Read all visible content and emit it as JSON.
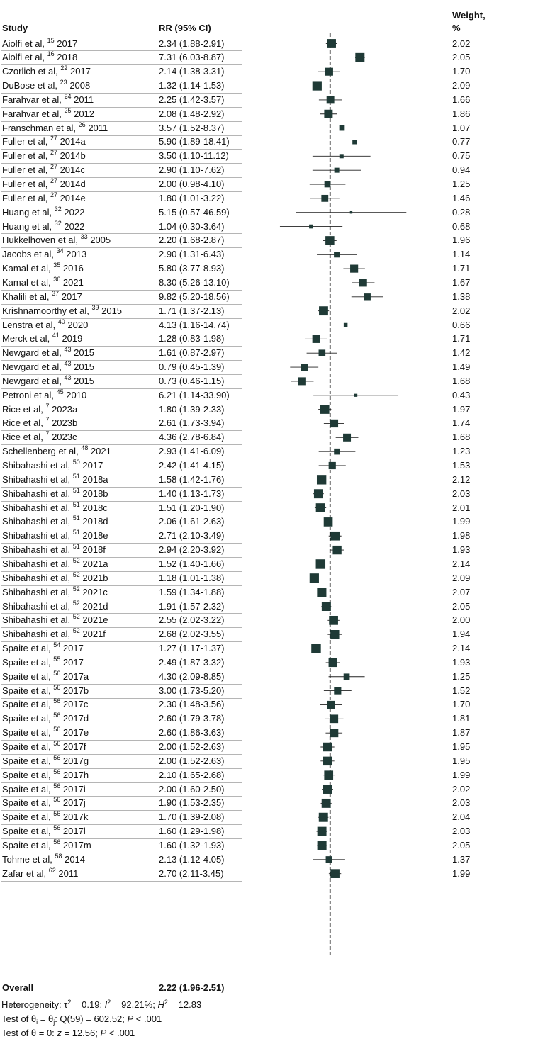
{
  "headers": {
    "study": "Study",
    "rr": "RR (95% CI)",
    "weight_line1": "Weight,",
    "weight_line2": "%"
  },
  "overall_label": "Overall",
  "heterogeneity_prefix": "Heterogeneity: τ",
  "heterogeneity_tau_exp": "2",
  "heterogeneity_tau_val": " = 0.19; ",
  "heterogeneity_i": "I",
  "heterogeneity_i_exp": "2",
  "heterogeneity_i_val": " = 92.21%; ",
  "heterogeneity_h": "H",
  "heterogeneity_h_exp": "2",
  "heterogeneity_h_val": " = 12.83",
  "test1_prefix": "Test of θ",
  "test1_sub1": "i",
  "test1_mid": " = θ",
  "test1_sub2": "j",
  "test1_rest": ": Q(59) = 602.52; ",
  "test1_p": "P",
  "test1_pval": " < .001",
  "test2_prefix": "Test of θ = 0: ",
  "test2_z": "z",
  "test2_zval": " = 12.56; ",
  "test2_p": "P",
  "test2_pval": " < .001",
  "colors": {
    "marker": "#1f3a36",
    "diamond": "#3a8f86",
    "line": "#222222"
  },
  "chart_data": {
    "type": "forest",
    "xlabel": "RR (95% CI)",
    "xscale": "log",
    "xticks": [
      0.5,
      2,
      8,
      32
    ],
    "xtick_labels": [
      "0.5",
      "2",
      "8",
      "32"
    ],
    "xlim": [
      0.5,
      32
    ],
    "null_line": 1,
    "pooled_line": 2.22,
    "studies": [
      {
        "author": "Aiolfi et al,",
        "ref": "15",
        "year": "2017",
        "rr_text": "2.34 (1.88-2.91)",
        "rr": 2.34,
        "lo": 1.88,
        "hi": 2.91,
        "weight": "2.02"
      },
      {
        "author": "Aiolfi et al,",
        "ref": "16",
        "year": "2018",
        "rr_text": "7.31 (6.03-8.87)",
        "rr": 7.31,
        "lo": 6.03,
        "hi": 8.87,
        "weight": "2.05"
      },
      {
        "author": "Czorlich et al,",
        "ref": "22",
        "year": "2017",
        "rr_text": "2.14 (1.38-3.31)",
        "rr": 2.14,
        "lo": 1.38,
        "hi": 3.31,
        "weight": "1.70"
      },
      {
        "author": "DuBose et al,",
        "ref": "23",
        "year": "2008",
        "rr_text": "1.32 (1.14-1.53)",
        "rr": 1.32,
        "lo": 1.14,
        "hi": 1.53,
        "weight": "2.09"
      },
      {
        "author": "Farahvar et al,",
        "ref": "24",
        "year": "2011",
        "rr_text": "2.25 (1.42-3.57)",
        "rr": 2.25,
        "lo": 1.42,
        "hi": 3.57,
        "weight": "1.66"
      },
      {
        "author": "Farahvar et al,",
        "ref": "25",
        "year": "2012",
        "rr_text": "2.08 (1.48-2.92)",
        "rr": 2.08,
        "lo": 1.48,
        "hi": 2.92,
        "weight": "1.86"
      },
      {
        "author": "Franschman et al,",
        "ref": "26",
        "year": "2011",
        "rr_text": "3.57 (1.52-8.37)",
        "rr": 3.57,
        "lo": 1.52,
        "hi": 8.37,
        "weight": "1.07"
      },
      {
        "author": "Fuller et al,",
        "ref": "27",
        "year": "2014a",
        "rr_text": "5.90 (1.89-18.41)",
        "rr": 5.9,
        "lo": 1.89,
        "hi": 18.41,
        "weight": "0.77"
      },
      {
        "author": "Fuller et al,",
        "ref": "27",
        "year": "2014b",
        "rr_text": "3.50 (1.10-11.12)",
        "rr": 3.5,
        "lo": 1.1,
        "hi": 11.12,
        "weight": "0.75"
      },
      {
        "author": "Fuller et al,",
        "ref": "27",
        "year": "2014c",
        "rr_text": "2.90 (1.10-7.62)",
        "rr": 2.9,
        "lo": 1.1,
        "hi": 7.62,
        "weight": "0.94"
      },
      {
        "author": "Fuller et al,",
        "ref": "27",
        "year": "2014d",
        "rr_text": "2.00 (0.98-4.10)",
        "rr": 2.0,
        "lo": 0.98,
        "hi": 4.1,
        "weight": "1.25"
      },
      {
        "author": "Fuller et al,",
        "ref": "27",
        "year": "2014e",
        "rr_text": "1.80 (1.01-3.22)",
        "rr": 1.8,
        "lo": 1.01,
        "hi": 3.22,
        "weight": "1.46"
      },
      {
        "author": "Huang et al,",
        "ref": "32",
        "year": "2022",
        "rr_text": "5.15 (0.57-46.59)",
        "rr": 5.15,
        "lo": 0.57,
        "hi": 46.59,
        "weight": "0.28"
      },
      {
        "author": "Huang et al,",
        "ref": "32",
        "year": "2022",
        "rr_text": "1.04 (0.30-3.64)",
        "rr": 1.04,
        "lo": 0.3,
        "hi": 3.64,
        "weight": "0.68"
      },
      {
        "author": "Hukkelhoven et al,",
        "ref": "33",
        "year": "2005",
        "rr_text": "2.20 (1.68-2.87)",
        "rr": 2.2,
        "lo": 1.68,
        "hi": 2.87,
        "weight": "1.96"
      },
      {
        "author": "Jacobs et al,",
        "ref": "34",
        "year": "2013",
        "rr_text": "2.90 (1.31-6.43)",
        "rr": 2.9,
        "lo": 1.31,
        "hi": 6.43,
        "weight": "1.14"
      },
      {
        "author": "Kamal et al,",
        "ref": "35",
        "year": "2016",
        "rr_text": "5.80 (3.77-8.93)",
        "rr": 5.8,
        "lo": 3.77,
        "hi": 8.93,
        "weight": "1.71"
      },
      {
        "author": "Kamal et al,",
        "ref": "36",
        "year": "2021",
        "rr_text": "8.30 (5.26-13.10)",
        "rr": 8.3,
        "lo": 5.26,
        "hi": 13.1,
        "weight": "1.67"
      },
      {
        "author": "Khalili et al,",
        "ref": "37",
        "year": "2017",
        "rr_text": "9.82 (5.20-18.56)",
        "rr": 9.82,
        "lo": 5.2,
        "hi": 18.56,
        "weight": "1.38"
      },
      {
        "author": "Krishnamoorthy et al,",
        "ref": "39",
        "year": "2015",
        "rr_text": "1.71 (1.37-2.13)",
        "rr": 1.71,
        "lo": 1.37,
        "hi": 2.13,
        "weight": "2.02"
      },
      {
        "author": "Lenstra et al,",
        "ref": "40",
        "year": "2020",
        "rr_text": "4.13 (1.16-14.74)",
        "rr": 4.13,
        "lo": 1.16,
        "hi": 14.74,
        "weight": "0.66"
      },
      {
        "author": "Merck et al,",
        "ref": "41",
        "year": "2019",
        "rr_text": "1.28 (0.83-1.98)",
        "rr": 1.28,
        "lo": 0.83,
        "hi": 1.98,
        "weight": "1.71"
      },
      {
        "author": "Newgard et al,",
        "ref": "43",
        "year": "2015",
        "rr_text": "1.61 (0.87-2.97)",
        "rr": 1.61,
        "lo": 0.87,
        "hi": 2.97,
        "weight": "1.42"
      },
      {
        "author": "Newgard et al,",
        "ref": "43",
        "year": "2015",
        "rr_text": "0.79 (0.45-1.39)",
        "rr": 0.79,
        "lo": 0.45,
        "hi": 1.39,
        "weight": "1.49"
      },
      {
        "author": "Newgard et al,",
        "ref": "43",
        "year": "2015",
        "rr_text": "0.73 (0.46-1.15)",
        "rr": 0.73,
        "lo": 0.46,
        "hi": 1.15,
        "weight": "1.68"
      },
      {
        "author": "Petroni et al,",
        "ref": "45",
        "year": "2010",
        "rr_text": "6.21 (1.14-33.90)",
        "rr": 6.21,
        "lo": 1.14,
        "hi": 33.9,
        "weight": "0.43"
      },
      {
        "author": "Rice et al,",
        "ref": "7",
        "year": "2023a",
        "rr_text": "1.80 (1.39-2.33)",
        "rr": 1.8,
        "lo": 1.39,
        "hi": 2.33,
        "weight": "1.97"
      },
      {
        "author": "Rice et al,",
        "ref": "7",
        "year": "2023b",
        "rr_text": "2.61 (1.73-3.94)",
        "rr": 2.61,
        "lo": 1.73,
        "hi": 3.94,
        "weight": "1.74"
      },
      {
        "author": "Rice et al,",
        "ref": "7",
        "year": "2023c",
        "rr_text": "4.36 (2.78-6.84)",
        "rr": 4.36,
        "lo": 2.78,
        "hi": 6.84,
        "weight": "1.68"
      },
      {
        "author": "Schellenberg et al,",
        "ref": "48",
        "year": "2021",
        "rr_text": "2.93 (1.41-6.09)",
        "rr": 2.93,
        "lo": 1.41,
        "hi": 6.09,
        "weight": "1.23"
      },
      {
        "author": "Shibahashi et al,",
        "ref": "50",
        "year": "2017",
        "rr_text": "2.42 (1.41-4.15)",
        "rr": 2.42,
        "lo": 1.41,
        "hi": 4.15,
        "weight": "1.53"
      },
      {
        "author": "Shibahashi et al,",
        "ref": "51",
        "year": "2018a",
        "rr_text": "1.58 (1.42-1.76)",
        "rr": 1.58,
        "lo": 1.42,
        "hi": 1.76,
        "weight": "2.12"
      },
      {
        "author": "Shibahashi et al,",
        "ref": "51",
        "year": "2018b",
        "rr_text": "1.40 (1.13-1.73)",
        "rr": 1.4,
        "lo": 1.13,
        "hi": 1.73,
        "weight": "2.03"
      },
      {
        "author": "Shibahashi et al,",
        "ref": "51",
        "year": "2018c",
        "rr_text": "1.51 (1.20-1.90)",
        "rr": 1.51,
        "lo": 1.2,
        "hi": 1.9,
        "weight": "2.01"
      },
      {
        "author": "Shibahashi et al,",
        "ref": "51",
        "year": "2018d",
        "rr_text": "2.06 (1.61-2.63)",
        "rr": 2.06,
        "lo": 1.61,
        "hi": 2.63,
        "weight": "1.99"
      },
      {
        "author": "Shibahashi et al,",
        "ref": "51",
        "year": "2018e",
        "rr_text": "2.71 (2.10-3.49)",
        "rr": 2.71,
        "lo": 2.1,
        "hi": 3.49,
        "weight": "1.98"
      },
      {
        "author": "Shibahashi et al,",
        "ref": "51",
        "year": "2018f",
        "rr_text": "2.94 (2.20-3.92)",
        "rr": 2.94,
        "lo": 2.2,
        "hi": 3.92,
        "weight": "1.93"
      },
      {
        "author": "Shibahashi et al,",
        "ref": "52",
        "year": "2021a",
        "rr_text": "1.52 (1.40-1.66)",
        "rr": 1.52,
        "lo": 1.4,
        "hi": 1.66,
        "weight": "2.14"
      },
      {
        "author": "Shibahashi et al,",
        "ref": "52",
        "year": "2021b",
        "rr_text": "1.18 (1.01-1.38)",
        "rr": 1.18,
        "lo": 1.01,
        "hi": 1.38,
        "weight": "2.09"
      },
      {
        "author": "Shibahashi et al,",
        "ref": "52",
        "year": "2021c",
        "rr_text": "1.59 (1.34-1.88)",
        "rr": 1.59,
        "lo": 1.34,
        "hi": 1.88,
        "weight": "2.07"
      },
      {
        "author": "Shibahashi et al,",
        "ref": "52",
        "year": "2021d",
        "rr_text": "1.91 (1.57-2.32)",
        "rr": 1.91,
        "lo": 1.57,
        "hi": 2.32,
        "weight": "2.05"
      },
      {
        "author": "Shibahashi et al,",
        "ref": "52",
        "year": "2021e",
        "rr_text": "2.55 (2.02-3.22)",
        "rr": 2.55,
        "lo": 2.02,
        "hi": 3.22,
        "weight": "2.00"
      },
      {
        "author": "Shibahashi et al,",
        "ref": "52",
        "year": "2021f",
        "rr_text": "2.68 (2.02-3.55)",
        "rr": 2.68,
        "lo": 2.02,
        "hi": 3.55,
        "weight": "1.94"
      },
      {
        "author": "Spaite et al,",
        "ref": "54",
        "year": "2017",
        "rr_text": "1.27 (1.17-1.37)",
        "rr": 1.27,
        "lo": 1.17,
        "hi": 1.37,
        "weight": "2.14"
      },
      {
        "author": "Spaite et al,",
        "ref": "55",
        "year": "2017",
        "rr_text": "2.49 (1.87-3.32)",
        "rr": 2.49,
        "lo": 1.87,
        "hi": 3.32,
        "weight": "1.93"
      },
      {
        "author": "Spaite et al,",
        "ref": "56",
        "year": "2017a",
        "rr_text": "4.30 (2.09-8.85)",
        "rr": 4.3,
        "lo": 2.09,
        "hi": 8.85,
        "weight": "1.25"
      },
      {
        "author": "Spaite et al,",
        "ref": "56",
        "year": "2017b",
        "rr_text": "3.00 (1.73-5.20)",
        "rr": 3.0,
        "lo": 1.73,
        "hi": 5.2,
        "weight": "1.52"
      },
      {
        "author": "Spaite et al,",
        "ref": "56",
        "year": "2017c",
        "rr_text": "2.30 (1.48-3.56)",
        "rr": 2.3,
        "lo": 1.48,
        "hi": 3.56,
        "weight": "1.70"
      },
      {
        "author": "Spaite et al,",
        "ref": "56",
        "year": "2017d",
        "rr_text": "2.60 (1.79-3.78)",
        "rr": 2.6,
        "lo": 1.79,
        "hi": 3.78,
        "weight": "1.81"
      },
      {
        "author": "Spaite et al,",
        "ref": "56",
        "year": "2017e",
        "rr_text": "2.60 (1.86-3.63)",
        "rr": 2.6,
        "lo": 1.86,
        "hi": 3.63,
        "weight": "1.87"
      },
      {
        "author": "Spaite et al,",
        "ref": "56",
        "year": "2017f",
        "rr_text": "2.00 (1.52-2.63)",
        "rr": 2.0,
        "lo": 1.52,
        "hi": 2.63,
        "weight": "1.95"
      },
      {
        "author": "Spaite et al,",
        "ref": "56",
        "year": "2017g",
        "rr_text": "2.00 (1.52-2.63)",
        "rr": 2.0,
        "lo": 1.52,
        "hi": 2.63,
        "weight": "1.95"
      },
      {
        "author": "Spaite et al,",
        "ref": "56",
        "year": "2017h",
        "rr_text": "2.10 (1.65-2.68)",
        "rr": 2.1,
        "lo": 1.65,
        "hi": 2.68,
        "weight": "1.99"
      },
      {
        "author": "Spaite et al,",
        "ref": "56",
        "year": "2017i",
        "rr_text": "2.00 (1.60-2.50)",
        "rr": 2.0,
        "lo": 1.6,
        "hi": 2.5,
        "weight": "2.02"
      },
      {
        "author": "Spaite et al,",
        "ref": "56",
        "year": "2017j",
        "rr_text": "1.90 (1.53-2.35)",
        "rr": 1.9,
        "lo": 1.53,
        "hi": 2.35,
        "weight": "2.03"
      },
      {
        "author": "Spaite et al,",
        "ref": "56",
        "year": "2017k",
        "rr_text": "1.70 (1.39-2.08)",
        "rr": 1.7,
        "lo": 1.39,
        "hi": 2.08,
        "weight": "2.04"
      },
      {
        "author": "Spaite et al,",
        "ref": "56",
        "year": "2017l",
        "rr_text": "1.60 (1.29-1.98)",
        "rr": 1.6,
        "lo": 1.29,
        "hi": 1.98,
        "weight": "2.03"
      },
      {
        "author": "Spaite et al,",
        "ref": "56",
        "year": "2017m",
        "rr_text": "1.60 (1.32-1.93)",
        "rr": 1.6,
        "lo": 1.32,
        "hi": 1.93,
        "weight": "2.05"
      },
      {
        "author": "Tohme et al,",
        "ref": "58",
        "year": "2014",
        "rr_text": "2.13 (1.12-4.05)",
        "rr": 2.13,
        "lo": 1.12,
        "hi": 4.05,
        "weight": "1.37"
      },
      {
        "author": "Zafar et al,",
        "ref": "62",
        "year": "2011",
        "rr_text": "2.70 (2.11-3.45)",
        "rr": 2.7,
        "lo": 2.11,
        "hi": 3.45,
        "weight": "1.99"
      }
    ],
    "overall": {
      "rr_text": "2.22 (1.96-2.51)",
      "rr": 2.22,
      "lo": 1.96,
      "hi": 2.51
    }
  }
}
